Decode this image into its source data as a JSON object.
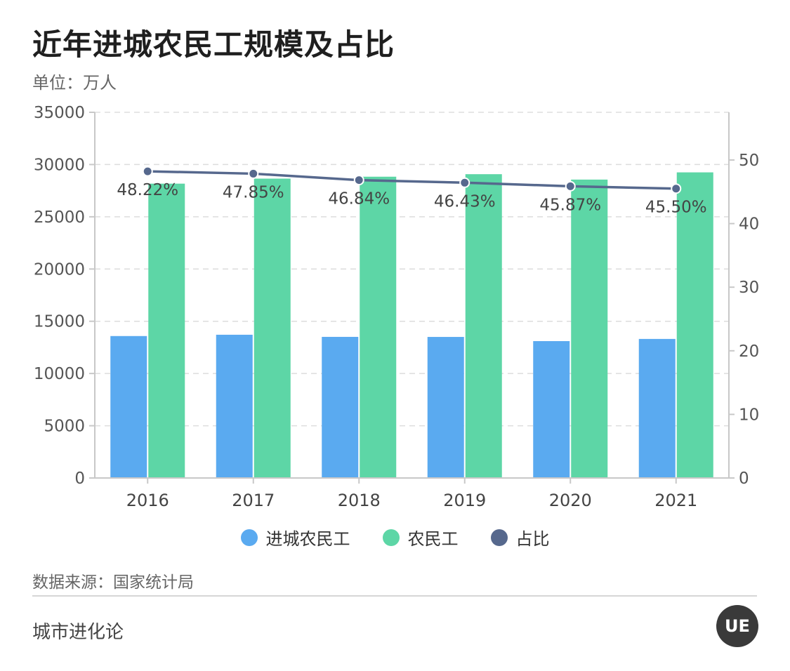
{
  "header": {
    "title": "近年进城农民工规模及占比",
    "unit": "单位：万人"
  },
  "chart_data": {
    "type": "bar",
    "categories": [
      "2016",
      "2017",
      "2018",
      "2019",
      "2020",
      "2021"
    ],
    "series": [
      {
        "name": "进城农民工",
        "type": "bar",
        "axis": "left",
        "color": "#5aaaf0",
        "values": [
          13585,
          13710,
          13506,
          13500,
          13101,
          13309
        ]
      },
      {
        "name": "农民工",
        "type": "bar",
        "axis": "left",
        "color": "#5dd6a6",
        "values": [
          28171,
          28652,
          28836,
          29077,
          28560,
          29251
        ]
      },
      {
        "name": "占比",
        "type": "line",
        "axis": "right",
        "color": "#56688d",
        "values": [
          48.22,
          47.85,
          46.84,
          46.43,
          45.87,
          45.5
        ],
        "labels": [
          "48.22%",
          "47.85%",
          "46.84%",
          "46.43%",
          "45.87%",
          "45.50%"
        ]
      }
    ],
    "left_axis": {
      "ticks": [
        "0",
        "5000",
        "10000",
        "15000",
        "20000",
        "25000",
        "30000",
        "35000"
      ],
      "ylim": [
        0,
        35000
      ]
    },
    "right_axis": {
      "ticks": [
        "0",
        "10",
        "20",
        "30",
        "40",
        "50"
      ],
      "ylim": [
        0,
        57.5
      ]
    },
    "grid": true,
    "legend": "bottom-center"
  },
  "legend": {
    "items": [
      {
        "label": "进城农民工",
        "color": "#5aaaf0"
      },
      {
        "label": "农民工",
        "color": "#5dd6a6"
      },
      {
        "label": "占比",
        "color": "#56688d"
      }
    ]
  },
  "footer": {
    "source": "数据来源：国家统计局",
    "brand": "城市进化论",
    "logo_text": "UE"
  }
}
